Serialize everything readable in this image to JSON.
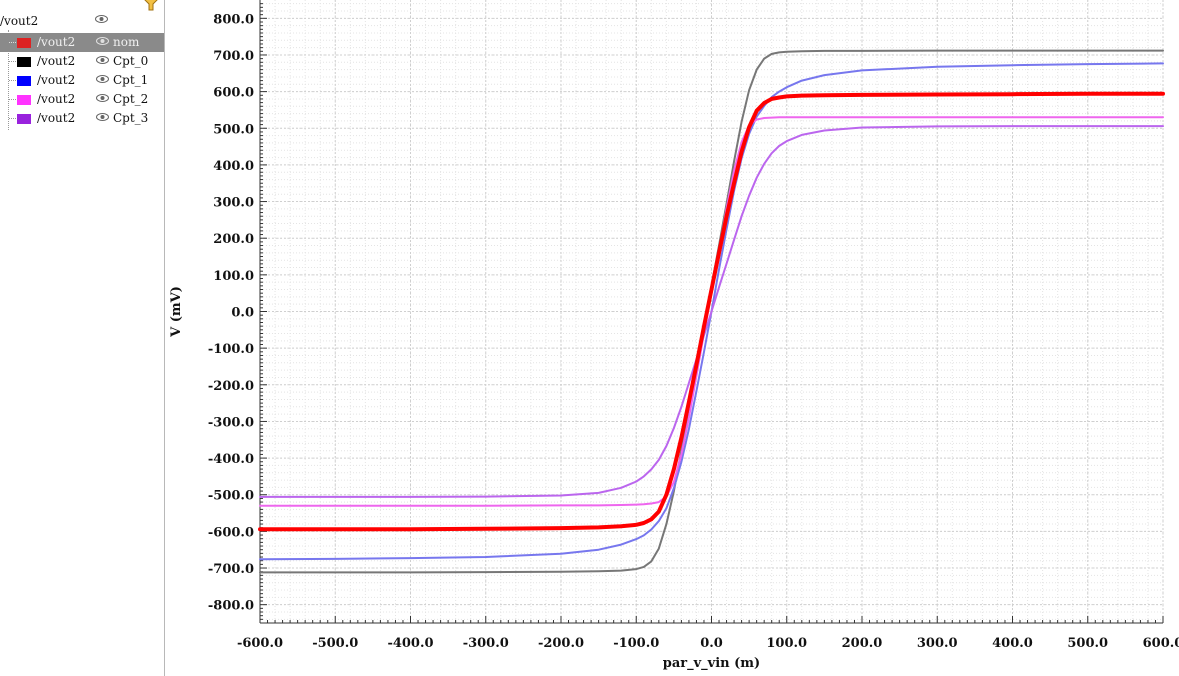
{
  "legend": {
    "root_label": "/vout2",
    "items": [
      {
        "signal": "/vout2",
        "corner": "nom",
        "color": "#dd2222",
        "selected": true
      },
      {
        "signal": "/vout2",
        "corner": "Cpt_0",
        "color": "#000000",
        "selected": false
      },
      {
        "signal": "/vout2",
        "corner": "Cpt_1",
        "color": "#0000ff",
        "selected": false
      },
      {
        "signal": "/vout2",
        "corner": "Cpt_2",
        "color": "#ff33ff",
        "selected": false
      },
      {
        "signal": "/vout2",
        "corner": "Cpt_3",
        "color": "#9922dd",
        "selected": false
      }
    ]
  },
  "chart_data": {
    "type": "line",
    "xlabel": "par_v_vin (m)",
    "ylabel": "V (mV)",
    "xlim": [
      -600,
      600
    ],
    "ylim": [
      -850,
      850
    ],
    "x_ticks": [
      -600,
      -500,
      -400,
      -300,
      -200,
      -100,
      0,
      100,
      200,
      300,
      400,
      500,
      600
    ],
    "x_tick_labels": [
      "-600.0",
      "-500.0",
      "-400.0",
      "-300.0",
      "-200.0",
      "-100.0",
      "0.0",
      "100.0",
      "200.0",
      "300.0",
      "400.0",
      "500.0",
      "600.0"
    ],
    "y_ticks": [
      800,
      700,
      600,
      500,
      400,
      300,
      200,
      100,
      0,
      -100,
      -200,
      -300,
      -400,
      -500,
      -600,
      -700,
      -800
    ],
    "y_tick_labels": [
      "800.0",
      "700.0",
      "600.0",
      "500.0",
      "400.0",
      "300.0",
      "200.0",
      "100.0",
      "0.0",
      "-100.0",
      "-200.0",
      "-300.0",
      "-400.0",
      "-500.0",
      "-600.0",
      "-700.0",
      "-800.0"
    ],
    "grid": true,
    "x": [
      -600,
      -500,
      -400,
      -300,
      -200,
      -150,
      -120,
      -100,
      -90,
      -80,
      -70,
      -60,
      -50,
      -40,
      -30,
      -20,
      -10,
      0,
      10,
      20,
      30,
      40,
      50,
      60,
      70,
      80,
      90,
      100,
      120,
      150,
      200,
      300,
      400,
      500,
      600
    ],
    "series": [
      {
        "name": "nom",
        "color": "#ff0000",
        "width": 4,
        "values": [
          -594,
          -594,
          -594,
          -593,
          -591,
          -589,
          -586,
          -582,
          -577,
          -567,
          -546,
          -500,
          -430,
          -344,
          -247,
          -145,
          -40,
          60,
          160,
          260,
          351,
          436,
          503,
          548,
          569,
          580,
          584,
          587,
          589,
          590,
          591,
          592,
          593,
          594,
          594
        ]
      },
      {
        "name": "Cpt_0",
        "color": "#777777",
        "width": 2,
        "values": [
          -712,
          -712,
          -712,
          -711,
          -710,
          -709,
          -707,
          -703,
          -697,
          -682,
          -647,
          -580,
          -490,
          -379,
          -262,
          -145,
          -35,
          70,
          180,
          295,
          410,
          518,
          604,
          660,
          690,
          703,
          707,
          709,
          710,
          711,
          711,
          712,
          712,
          712,
          712
        ]
      },
      {
        "name": "Cpt_1",
        "color": "#7777ee",
        "width": 2,
        "values": [
          -676,
          -675,
          -673,
          -670,
          -661,
          -650,
          -636,
          -621,
          -611,
          -595,
          -572,
          -537,
          -482,
          -410,
          -321,
          -216,
          -110,
          0,
          115,
          225,
          330,
          418,
          485,
          532,
          561,
          585,
          600,
          612,
          630,
          645,
          658,
          668,
          672,
          675,
          677
        ]
      },
      {
        "name": "Cpt_2",
        "color": "#ee66ee",
        "width": 2,
        "values": [
          -530,
          -530,
          -530,
          -530,
          -529,
          -529,
          -528,
          -527,
          -526,
          -524,
          -520,
          -505,
          -465,
          -390,
          -290,
          -175,
          -60,
          50,
          165,
          282,
          385,
          462,
          508,
          524,
          528,
          529,
          530,
          530,
          530,
          530,
          530,
          530,
          530,
          530,
          530
        ]
      },
      {
        "name": "Cpt_3",
        "color": "#bb66ee",
        "width": 2,
        "values": [
          -506,
          -506,
          -506,
          -505,
          -502,
          -495,
          -481,
          -464,
          -450,
          -431,
          -405,
          -367,
          -318,
          -260,
          -195,
          -130,
          -65,
          0,
          66,
          131,
          196,
          260,
          316,
          365,
          403,
          432,
          452,
          465,
          482,
          494,
          502,
          505,
          506,
          506,
          506
        ]
      }
    ]
  }
}
